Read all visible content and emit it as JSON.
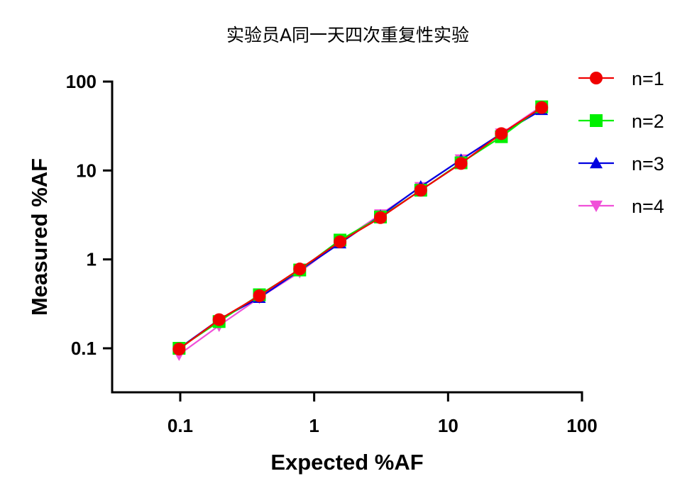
{
  "chart_data": {
    "type": "line",
    "title": "实验员A同一天四次重复性实验",
    "xlabel": "Expected %AF",
    "ylabel": "Measured %AF",
    "xscale": "log",
    "yscale": "log",
    "xlim": [
      0.031,
      100
    ],
    "ylim": [
      0.032,
      100
    ],
    "xticks": [
      0.1,
      1,
      10,
      100
    ],
    "xtick_labels": [
      "0.1",
      "1",
      "10",
      "100"
    ],
    "yticks": [
      0.1,
      1,
      10,
      100
    ],
    "ytick_labels": [
      "0.1",
      "1",
      "10",
      "100"
    ],
    "grid": false,
    "legend_position": "right",
    "x": [
      0.098,
      0.195,
      0.39,
      0.78,
      1.56,
      3.125,
      6.25,
      12.5,
      25,
      50
    ],
    "series": [
      {
        "name": "n=4",
        "color": "#f050d8",
        "marker": "triangle-down",
        "values": [
          0.085,
          0.18,
          0.37,
          0.72,
          1.58,
          3.2,
          6.5,
          13.3,
          26,
          53
        ]
      },
      {
        "name": "n=3",
        "color": "#0000e0",
        "marker": "triangle-up",
        "values": [
          0.1,
          0.21,
          0.37,
          0.75,
          1.52,
          3.1,
          6.6,
          13.2,
          26,
          48
        ]
      },
      {
        "name": "n=2",
        "color": "#00f000",
        "marker": "square",
        "values": [
          0.1,
          0.2,
          0.4,
          0.76,
          1.65,
          3.0,
          6.0,
          12.2,
          24,
          52
        ]
      },
      {
        "name": "n=1",
        "color": "#f00000",
        "marker": "circle",
        "values": [
          0.098,
          0.21,
          0.39,
          0.78,
          1.58,
          2.95,
          6.0,
          12.0,
          26,
          51
        ]
      }
    ],
    "legend_order": [
      "n=1",
      "n=2",
      "n=3",
      "n=4"
    ]
  }
}
